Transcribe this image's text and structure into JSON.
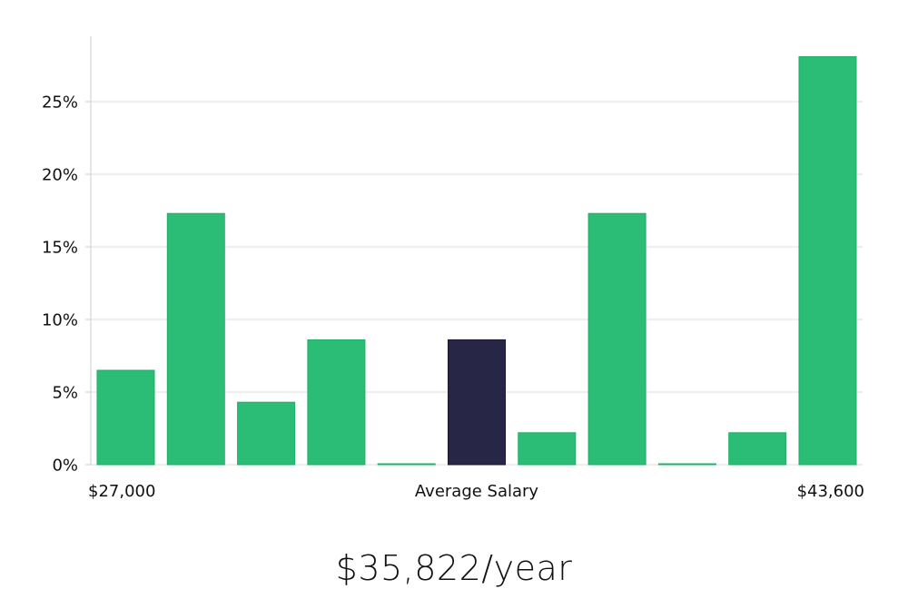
{
  "chart_data": {
    "type": "bar",
    "values": [
      6.5,
      17.3,
      4.3,
      8.6,
      0,
      8.6,
      2.2,
      17.3,
      0,
      2.2,
      28.1
    ],
    "highlight_index": 5,
    "y_ticks": [
      0,
      5,
      10,
      15,
      20,
      25
    ],
    "y_tick_labels": [
      "0%",
      "5%",
      "10%",
      "15%",
      "20%",
      "25%"
    ],
    "ylim": [
      0,
      29.5
    ],
    "x_label_min": "$27,000",
    "x_label_center": "Average Salary",
    "x_label_max": "$43,600",
    "grid": "horizontal",
    "colors": {
      "bar": "#2bbd76",
      "bar_stroke": "#1fae66",
      "highlight": "#282646",
      "grid": "#dddddd",
      "axis": "#cccccc"
    }
  },
  "headline": "$35,822/year"
}
